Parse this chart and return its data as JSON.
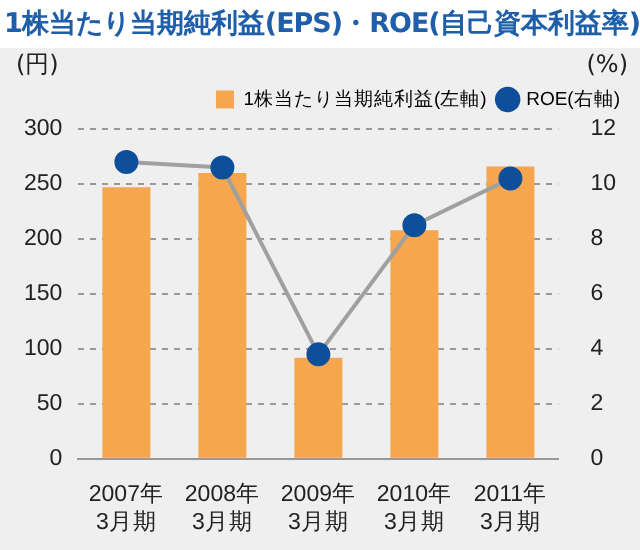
{
  "chart_data": {
    "type": "bar",
    "title": "1株当たり当期純利益(EPS)・ROE(自己資本利益率)",
    "categories": [
      "2007年\n3月期",
      "2008年\n3月期",
      "2009年\n3月期",
      "2010年\n3月期",
      "2011年\n3月期"
    ],
    "series": [
      {
        "name": "1株当たり当期純利益(左軸)",
        "color": "#f5a64e",
        "values": [
          247,
          260,
          92,
          208,
          266
        ]
      },
      {
        "name": "ROE(右軸)",
        "type": "line",
        "axis": "y2",
        "color": "#0d4f9a",
        "values": [
          10.8,
          10.6,
          3.8,
          8.5,
          10.2
        ]
      }
    ],
    "ylabel": "(円)",
    "y2label": "(%)",
    "ylim": [
      0,
      300
    ],
    "yticks": [
      0,
      50,
      100,
      150,
      200,
      250,
      300
    ],
    "y2lim": [
      0,
      12
    ],
    "y2ticks": [
      0,
      2,
      4,
      6,
      8,
      10,
      12
    ],
    "grid": "y",
    "legend": "top right",
    "marker": "circle"
  }
}
